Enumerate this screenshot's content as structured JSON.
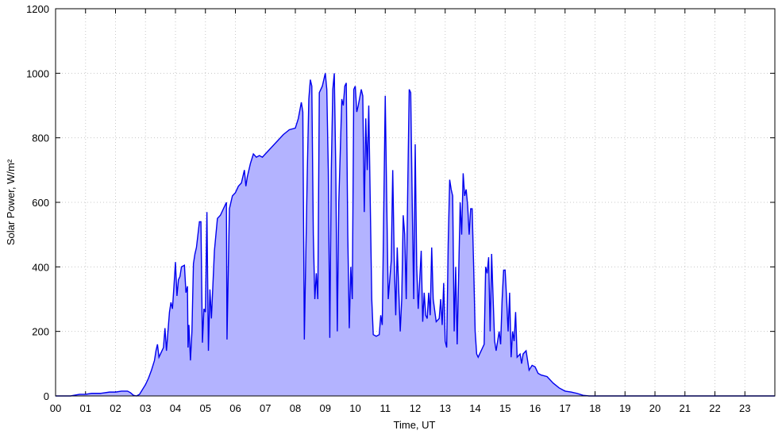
{
  "chart_data": {
    "type": "area",
    "xlabel": "Time, UT",
    "ylabel": "Solar Power, W/m²",
    "color": "#0000ee",
    "fill": "#b3b3ff",
    "grid": true,
    "xlim": [
      0,
      24
    ],
    "ylim": [
      0,
      1200
    ],
    "xticks": [
      {
        "value": 0,
        "label": "00"
      },
      {
        "value": 1,
        "label": "01"
      },
      {
        "value": 2,
        "label": "02"
      },
      {
        "value": 3,
        "label": "03"
      },
      {
        "value": 4,
        "label": "04"
      },
      {
        "value": 5,
        "label": "05"
      },
      {
        "value": 6,
        "label": "06"
      },
      {
        "value": 7,
        "label": "07"
      },
      {
        "value": 8,
        "label": "08"
      },
      {
        "value": 9,
        "label": "09"
      },
      {
        "value": 10,
        "label": "10"
      },
      {
        "value": 11,
        "label": "11"
      },
      {
        "value": 12,
        "label": "12"
      },
      {
        "value": 13,
        "label": "13"
      },
      {
        "value": 14,
        "label": "14"
      },
      {
        "value": 15,
        "label": "15"
      },
      {
        "value": 16,
        "label": "16"
      },
      {
        "value": 17,
        "label": "17"
      },
      {
        "value": 18,
        "label": "18"
      },
      {
        "value": 19,
        "label": "19"
      },
      {
        "value": 20,
        "label": "20"
      },
      {
        "value": 21,
        "label": "21"
      },
      {
        "value": 22,
        "label": "22"
      },
      {
        "value": 23,
        "label": "23"
      }
    ],
    "yticks": [
      0,
      200,
      400,
      600,
      800,
      1000,
      1200
    ],
    "x": [
      0,
      0.5,
      0.8,
      1.0,
      1.2,
      1.5,
      1.8,
      2.0,
      2.2,
      2.4,
      2.5,
      2.6,
      2.7,
      2.8,
      2.9,
      3.0,
      3.1,
      3.2,
      3.3,
      3.35,
      3.4,
      3.45,
      3.55,
      3.6,
      3.65,
      3.7,
      3.75,
      3.8,
      3.85,
      3.9,
      3.95,
      4.0,
      4.05,
      4.1,
      4.15,
      4.2,
      4.3,
      4.35,
      4.4,
      4.42,
      4.45,
      4.5,
      4.55,
      4.6,
      4.65,
      4.7,
      4.8,
      4.85,
      4.9,
      4.95,
      5.0,
      5.05,
      5.1,
      5.15,
      5.2,
      5.3,
      5.4,
      5.5,
      5.6,
      5.7,
      5.72,
      5.8,
      5.9,
      6.0,
      6.1,
      6.2,
      6.3,
      6.35,
      6.4,
      6.5,
      6.6,
      6.7,
      6.8,
      6.9,
      7.0,
      7.2,
      7.4,
      7.6,
      7.8,
      8.0,
      8.1,
      8.2,
      8.25,
      8.3,
      8.4,
      8.45,
      8.5,
      8.55,
      8.6,
      8.65,
      8.7,
      8.75,
      8.8,
      8.9,
      9.0,
      9.05,
      9.1,
      9.15,
      9.2,
      9.25,
      9.3,
      9.35,
      9.4,
      9.45,
      9.55,
      9.6,
      9.65,
      9.7,
      9.75,
      9.8,
      9.85,
      9.9,
      9.95,
      10.0,
      10.05,
      10.1,
      10.2,
      10.25,
      10.3,
      10.35,
      10.4,
      10.45,
      10.5,
      10.55,
      10.6,
      10.7,
      10.8,
      10.85,
      10.9,
      11.0,
      11.05,
      11.1,
      11.2,
      11.25,
      11.3,
      11.35,
      11.4,
      11.5,
      11.55,
      11.6,
      11.65,
      11.7,
      11.75,
      11.8,
      11.85,
      11.9,
      11.95,
      12.0,
      12.05,
      12.1,
      12.2,
      12.25,
      12.3,
      12.35,
      12.4,
      12.45,
      12.5,
      12.55,
      12.6,
      12.7,
      12.8,
      12.85,
      12.9,
      12.95,
      13.0,
      13.05,
      13.1,
      13.15,
      13.2,
      13.25,
      13.3,
      13.35,
      13.4,
      13.5,
      13.55,
      13.6,
      13.65,
      13.7,
      13.75,
      13.8,
      13.85,
      13.9,
      13.95,
      14.0,
      14.05,
      14.1,
      14.2,
      14.3,
      14.35,
      14.4,
      14.45,
      14.5,
      14.55,
      14.6,
      14.65,
      14.7,
      14.8,
      14.85,
      14.9,
      14.95,
      15.0,
      15.05,
      15.1,
      15.15,
      15.2,
      15.25,
      15.3,
      15.35,
      15.4,
      15.5,
      15.55,
      15.6,
      15.7,
      15.8,
      15.9,
      16.0,
      16.1,
      16.2,
      16.4,
      16.6,
      16.8,
      17.0,
      17.2,
      17.4,
      17.6,
      17.8,
      24.0
    ],
    "values": [
      0,
      0,
      5,
      5,
      8,
      8,
      12,
      12,
      15,
      15,
      10,
      2,
      0,
      5,
      20,
      35,
      55,
      80,
      110,
      140,
      160,
      120,
      140,
      150,
      210,
      140,
      200,
      260,
      290,
      270,
      340,
      415,
      310,
      360,
      370,
      400,
      405,
      320,
      340,
      150,
      220,
      110,
      200,
      410,
      440,
      460,
      540,
      540,
      165,
      270,
      260,
      570,
      140,
      330,
      240,
      450,
      550,
      560,
      580,
      600,
      175,
      580,
      620,
      630,
      650,
      660,
      700,
      650,
      680,
      720,
      750,
      740,
      745,
      740,
      750,
      770,
      790,
      810,
      825,
      830,
      860,
      910,
      880,
      175,
      700,
      920,
      980,
      960,
      500,
      300,
      380,
      300,
      940,
      960,
      1000,
      950,
      700,
      180,
      700,
      950,
      1000,
      700,
      200,
      600,
      920,
      900,
      960,
      970,
      500,
      210,
      400,
      300,
      950,
      960,
      880,
      900,
      950,
      930,
      570,
      860,
      700,
      900,
      600,
      300,
      190,
      185,
      190,
      250,
      220,
      930,
      600,
      300,
      420,
      700,
      420,
      250,
      460,
      200,
      300,
      560,
      500,
      300,
      640,
      950,
      940,
      600,
      300,
      780,
      400,
      270,
      450,
      230,
      320,
      250,
      240,
      320,
      250,
      460,
      300,
      230,
      240,
      300,
      220,
      350,
      170,
      150,
      470,
      670,
      640,
      620,
      200,
      400,
      160,
      600,
      500,
      690,
      620,
      640,
      590,
      500,
      580,
      580,
      400,
      200,
      130,
      120,
      140,
      160,
      400,
      380,
      430,
      200,
      440,
      300,
      170,
      140,
      200,
      160,
      300,
      390,
      390,
      300,
      200,
      320,
      120,
      200,
      170,
      260,
      120,
      130,
      100,
      130,
      140,
      80,
      95,
      90,
      70,
      65,
      60,
      40,
      25,
      15,
      12,
      8,
      2,
      0,
      0
    ]
  }
}
